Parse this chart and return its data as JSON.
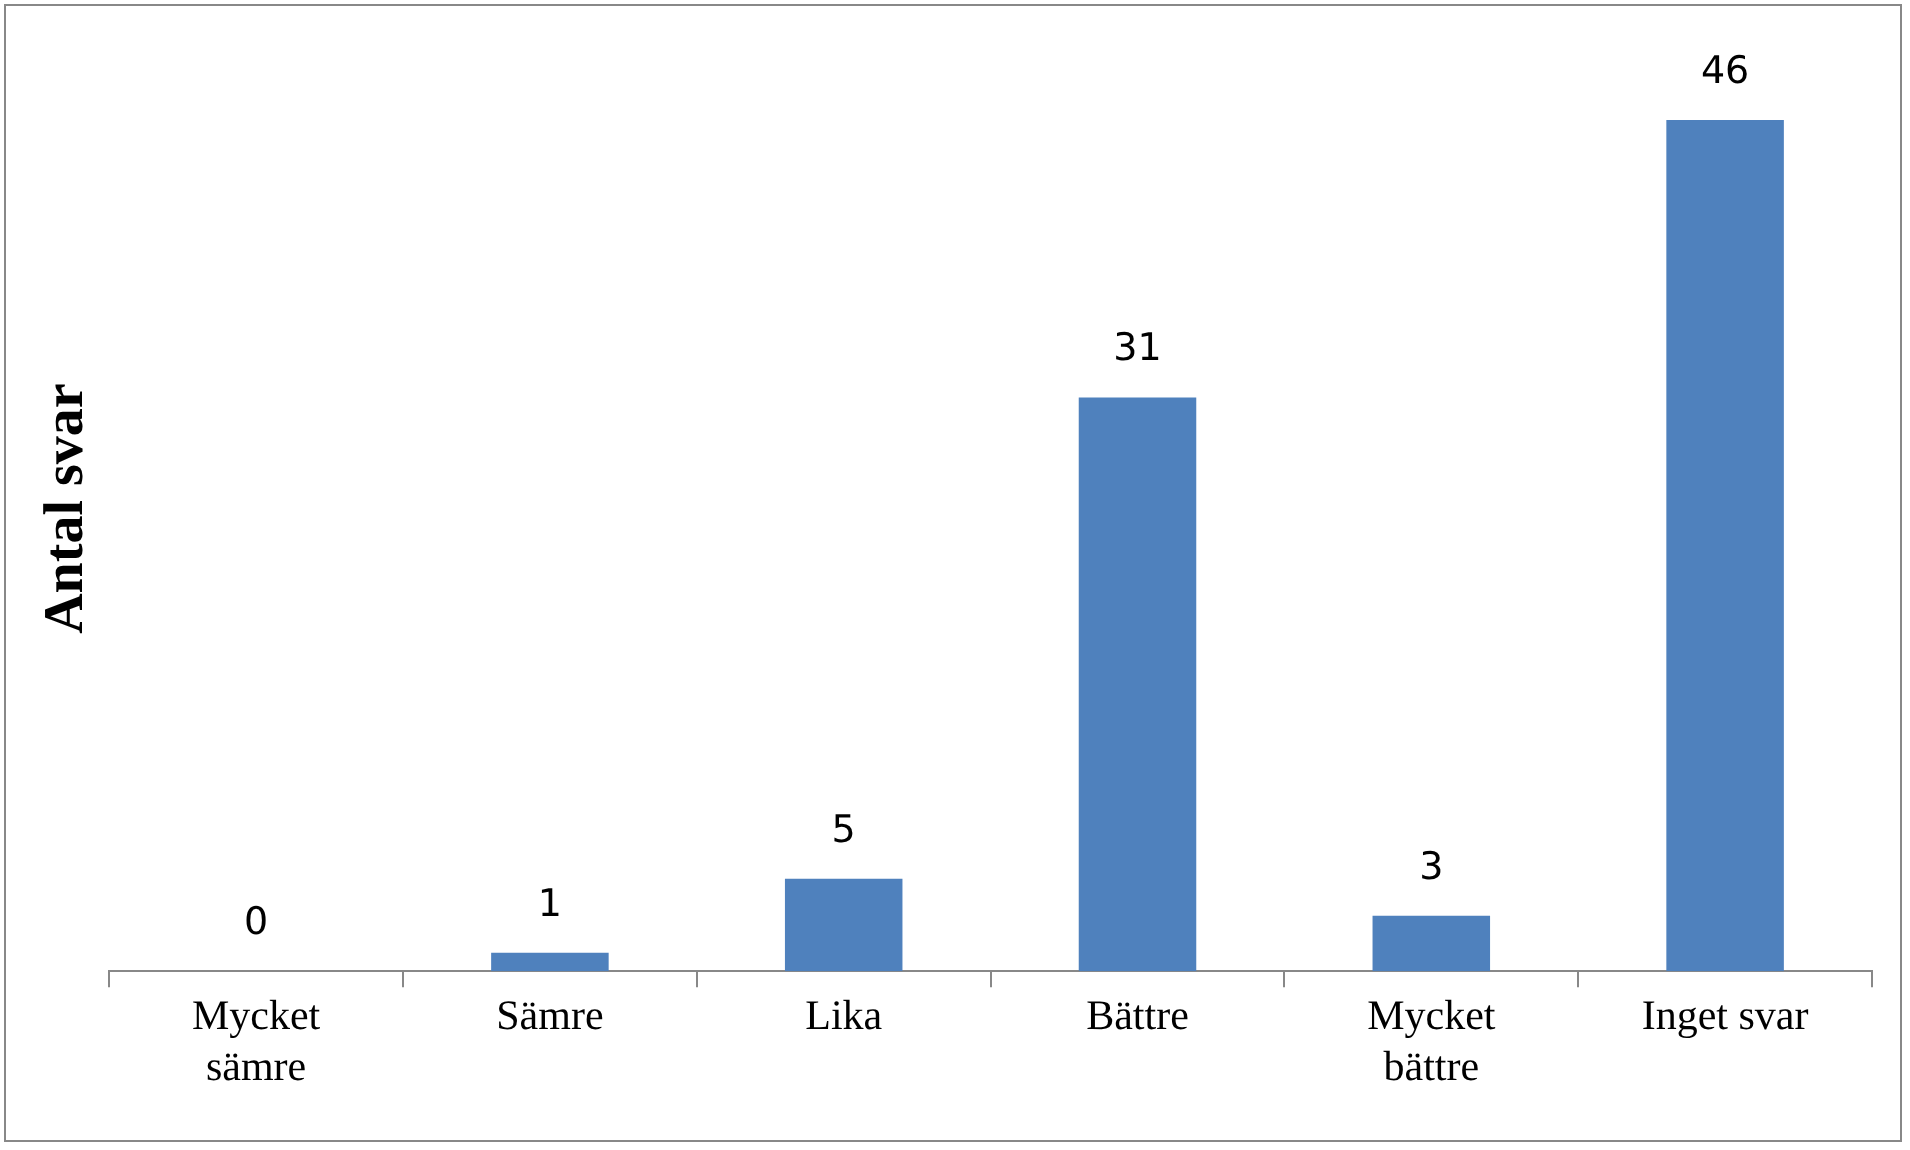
{
  "chart_data": {
    "type": "bar",
    "ylabel": "Antal svar",
    "categories": [
      "Mycket sämre",
      "Sämre",
      "Lika",
      "Bättre",
      "Mycket bättre",
      "Inget svar"
    ],
    "values": [
      0,
      1,
      5,
      31,
      3,
      46
    ],
    "color": "#4f81bd",
    "data_labels": true,
    "grid": false,
    "legend": false
  }
}
